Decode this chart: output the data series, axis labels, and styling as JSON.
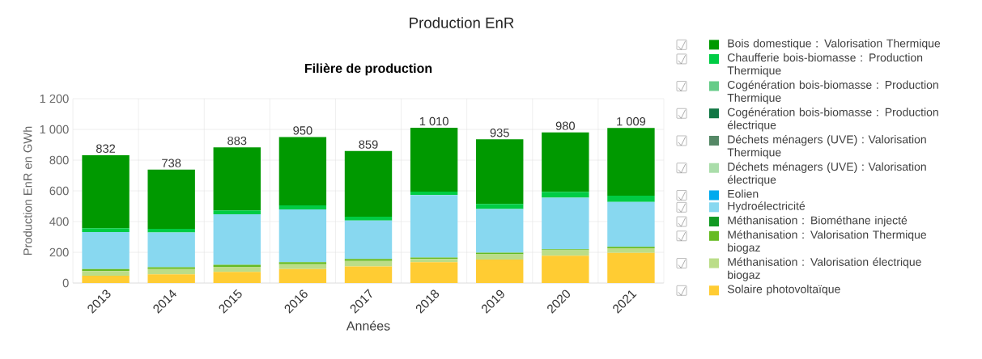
{
  "chart_data": {
    "type": "bar",
    "title": "Production EnR",
    "subtitle": "Filière de production",
    "xlabel": "Années",
    "ylabel": "Production EnR en GWh",
    "categories": [
      "2013",
      "2014",
      "2015",
      "2016",
      "2017",
      "2018",
      "2019",
      "2020",
      "2021"
    ],
    "stacked": true,
    "series": [
      {
        "name": "Solaire photovoltaïque",
        "color": "#ffcc33",
        "values": [
          47,
          56,
          73,
          91,
          108,
          135,
          152,
          178,
          196
        ]
      },
      {
        "name": "Méthanisation : Valorisation électrique biogaz",
        "color": "#bbdd88",
        "values": [
          30,
          35,
          32,
          31,
          35,
          21,
          35,
          35,
          30
        ]
      },
      {
        "name": "Méthanisation : Valorisation Thermique biogaz",
        "color": "#66bb22",
        "values": [
          14,
          12,
          14,
          13,
          13,
          10,
          11,
          7,
          10
        ]
      },
      {
        "name": "Méthanisation : Biométhane injecté",
        "color": "#119922",
        "values": [
          0,
          0,
          0,
          0,
          0,
          0,
          0,
          0,
          0
        ]
      },
      {
        "name": "Hydroélectricité",
        "color": "#88d8f0",
        "values": [
          241,
          226,
          329,
          344,
          250,
          406,
          283,
          335,
          292
        ]
      },
      {
        "name": "Eolien",
        "color": "#00aaee",
        "values": [
          0,
          0,
          0,
          0,
          0,
          0,
          0,
          0,
          0
        ]
      },
      {
        "name": "Déchets ménagers (UVE) : Valorisation électrique",
        "color": "#aaddaa",
        "values": [
          0,
          0,
          0,
          0,
          0,
          0,
          0,
          0,
          0
        ]
      },
      {
        "name": "Déchets ménagers (UVE) : Valorisation Thermique",
        "color": "#558866",
        "values": [
          0,
          0,
          0,
          0,
          0,
          0,
          0,
          0,
          0
        ]
      },
      {
        "name": "Cogénération bois-biomasse : Production électrique",
        "color": "#117744",
        "values": [
          0,
          0,
          0,
          0,
          0,
          0,
          0,
          0,
          0
        ]
      },
      {
        "name": "Cogénération bois-biomasse : Production Thermique",
        "color": "#66cc88",
        "values": [
          0,
          0,
          0,
          0,
          0,
          0,
          0,
          0,
          0
        ]
      },
      {
        "name": "Chaufferie bois-biomasse : Production Thermique",
        "color": "#00cc44",
        "values": [
          25,
          24,
          24,
          26,
          26,
          23,
          33,
          38,
          41
        ]
      },
      {
        "name": "Bois domestique : Valorisation Thermique",
        "color": "#009900",
        "values": [
          475,
          385,
          411,
          445,
          427,
          415,
          421,
          387,
          440
        ]
      }
    ],
    "totals": [
      "832",
      "738",
      "883",
      "950",
      "859",
      "1 010",
      "935",
      "980",
      "1 009"
    ],
    "ylim": [
      0,
      1200
    ],
    "yticks": [
      0,
      200,
      400,
      600,
      800,
      {
        "value": 1000,
        "label": "1 000"
      },
      {
        "value": 1200,
        "label": "1 200"
      }
    ],
    "grid": true,
    "legend": "right"
  }
}
